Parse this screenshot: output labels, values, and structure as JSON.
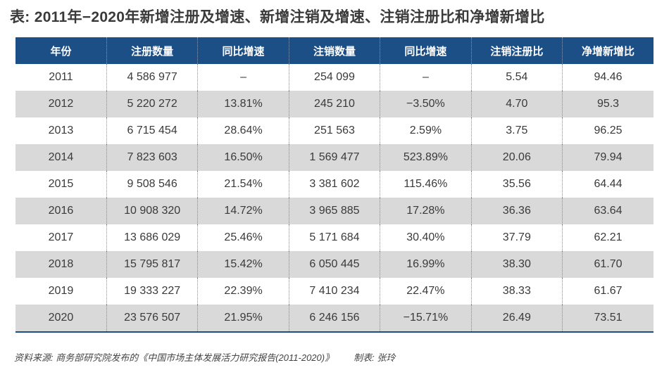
{
  "title": "表: 2011年−2020年新增注册及增速、新增注销及增速、注销注册比和净增新增比",
  "columns": [
    "年份",
    "注册数量",
    "同比增速",
    "注销数量",
    "同比增速",
    "注销注册比",
    "净增新增比"
  ],
  "rows": [
    [
      "2011",
      "4 586 977",
      "–",
      "254 099",
      "–",
      "5.54",
      "94.46"
    ],
    [
      "2012",
      "5 220 272",
      "13.81%",
      "245 210",
      "−3.50%",
      "4.70",
      "95.3"
    ],
    [
      "2013",
      "6 715 454",
      "28.64%",
      "251 563",
      "2.59%",
      "3.75",
      "96.25"
    ],
    [
      "2014",
      "7 823 603",
      "16.50%",
      "1 569 477",
      "523.89%",
      "20.06",
      "79.94"
    ],
    [
      "2015",
      "9 508 546",
      "21.54%",
      "3 381 602",
      "115.46%",
      "35.56",
      "64.44"
    ],
    [
      "2016",
      "10 908 320",
      "14.72%",
      "3 965 885",
      "17.28%",
      "36.36",
      "63.64"
    ],
    [
      "2017",
      "13 686 029",
      "25.46%",
      "5 171 684",
      "30.40%",
      "37.79",
      "62.21"
    ],
    [
      "2018",
      "15 795 817",
      "15.42%",
      "6 050 445",
      "16.99%",
      "38.30",
      "61.70"
    ],
    [
      "2019",
      "19 333 227",
      "22.39%",
      "7 410 234",
      "22.47%",
      "38.33",
      "61.67"
    ],
    [
      "2020",
      "23 576 507",
      "21.95%",
      "6 246 156",
      "−15.71%",
      "26.49",
      "73.51"
    ]
  ],
  "colors": {
    "header_bg": "#1c4f86",
    "header_text": "#ffffff",
    "shaded_row_bg": "#d9d9d9"
  },
  "footer": {
    "source": "资料来源: 商务部研究院发布的《中国市场主体发展活力研究报告(2011-2020)》",
    "maker": "制表: 张玲"
  }
}
